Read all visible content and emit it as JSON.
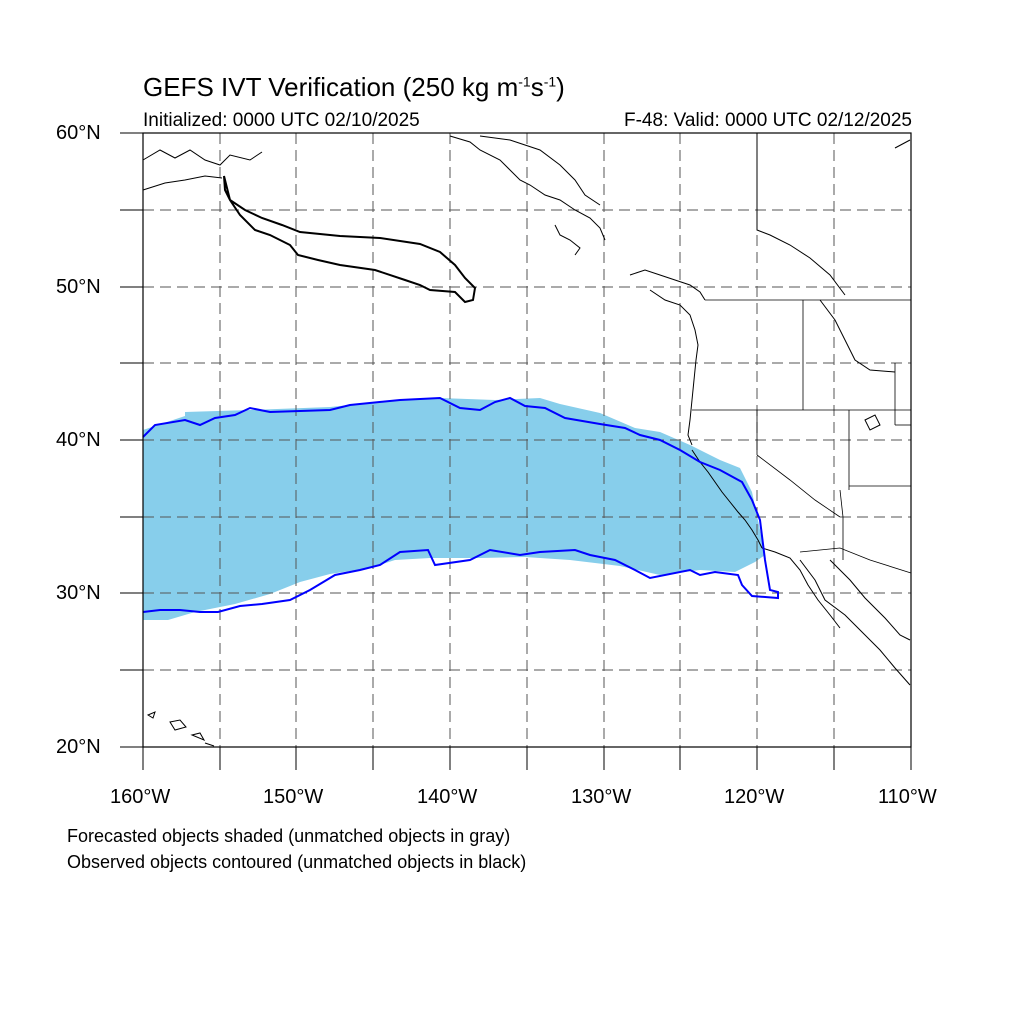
{
  "header": {
    "title_main": "GEFS IVT Verification (250 kg m",
    "title_exp1": "-1",
    "title_mid": "s",
    "title_exp2": "-1",
    "title_end": ")",
    "initialized": "Initialized: 0000 UTC 02/10/2025",
    "valid": "F-48: Valid: 0000 UTC 02/12/2025"
  },
  "axes": {
    "lat_labels": [
      "60°N",
      "50°N",
      "40°N",
      "30°N",
      "20°N"
    ],
    "lon_labels": [
      "160°W",
      "150°W",
      "140°W",
      "130°W",
      "120°W",
      "110°W"
    ],
    "lon_range": [
      -160,
      -110
    ],
    "lat_range": [
      20,
      60
    ]
  },
  "legend": {
    "line1": "Forecasted objects shaded (unmatched objects in gray)",
    "line2": "Observed objects contoured (unmatched objects in black)"
  },
  "colors": {
    "forecast_fill": "#87ceeb",
    "observed_matched": "#0000ff",
    "observed_unmatched": "#000000",
    "grid": "#555555"
  }
}
